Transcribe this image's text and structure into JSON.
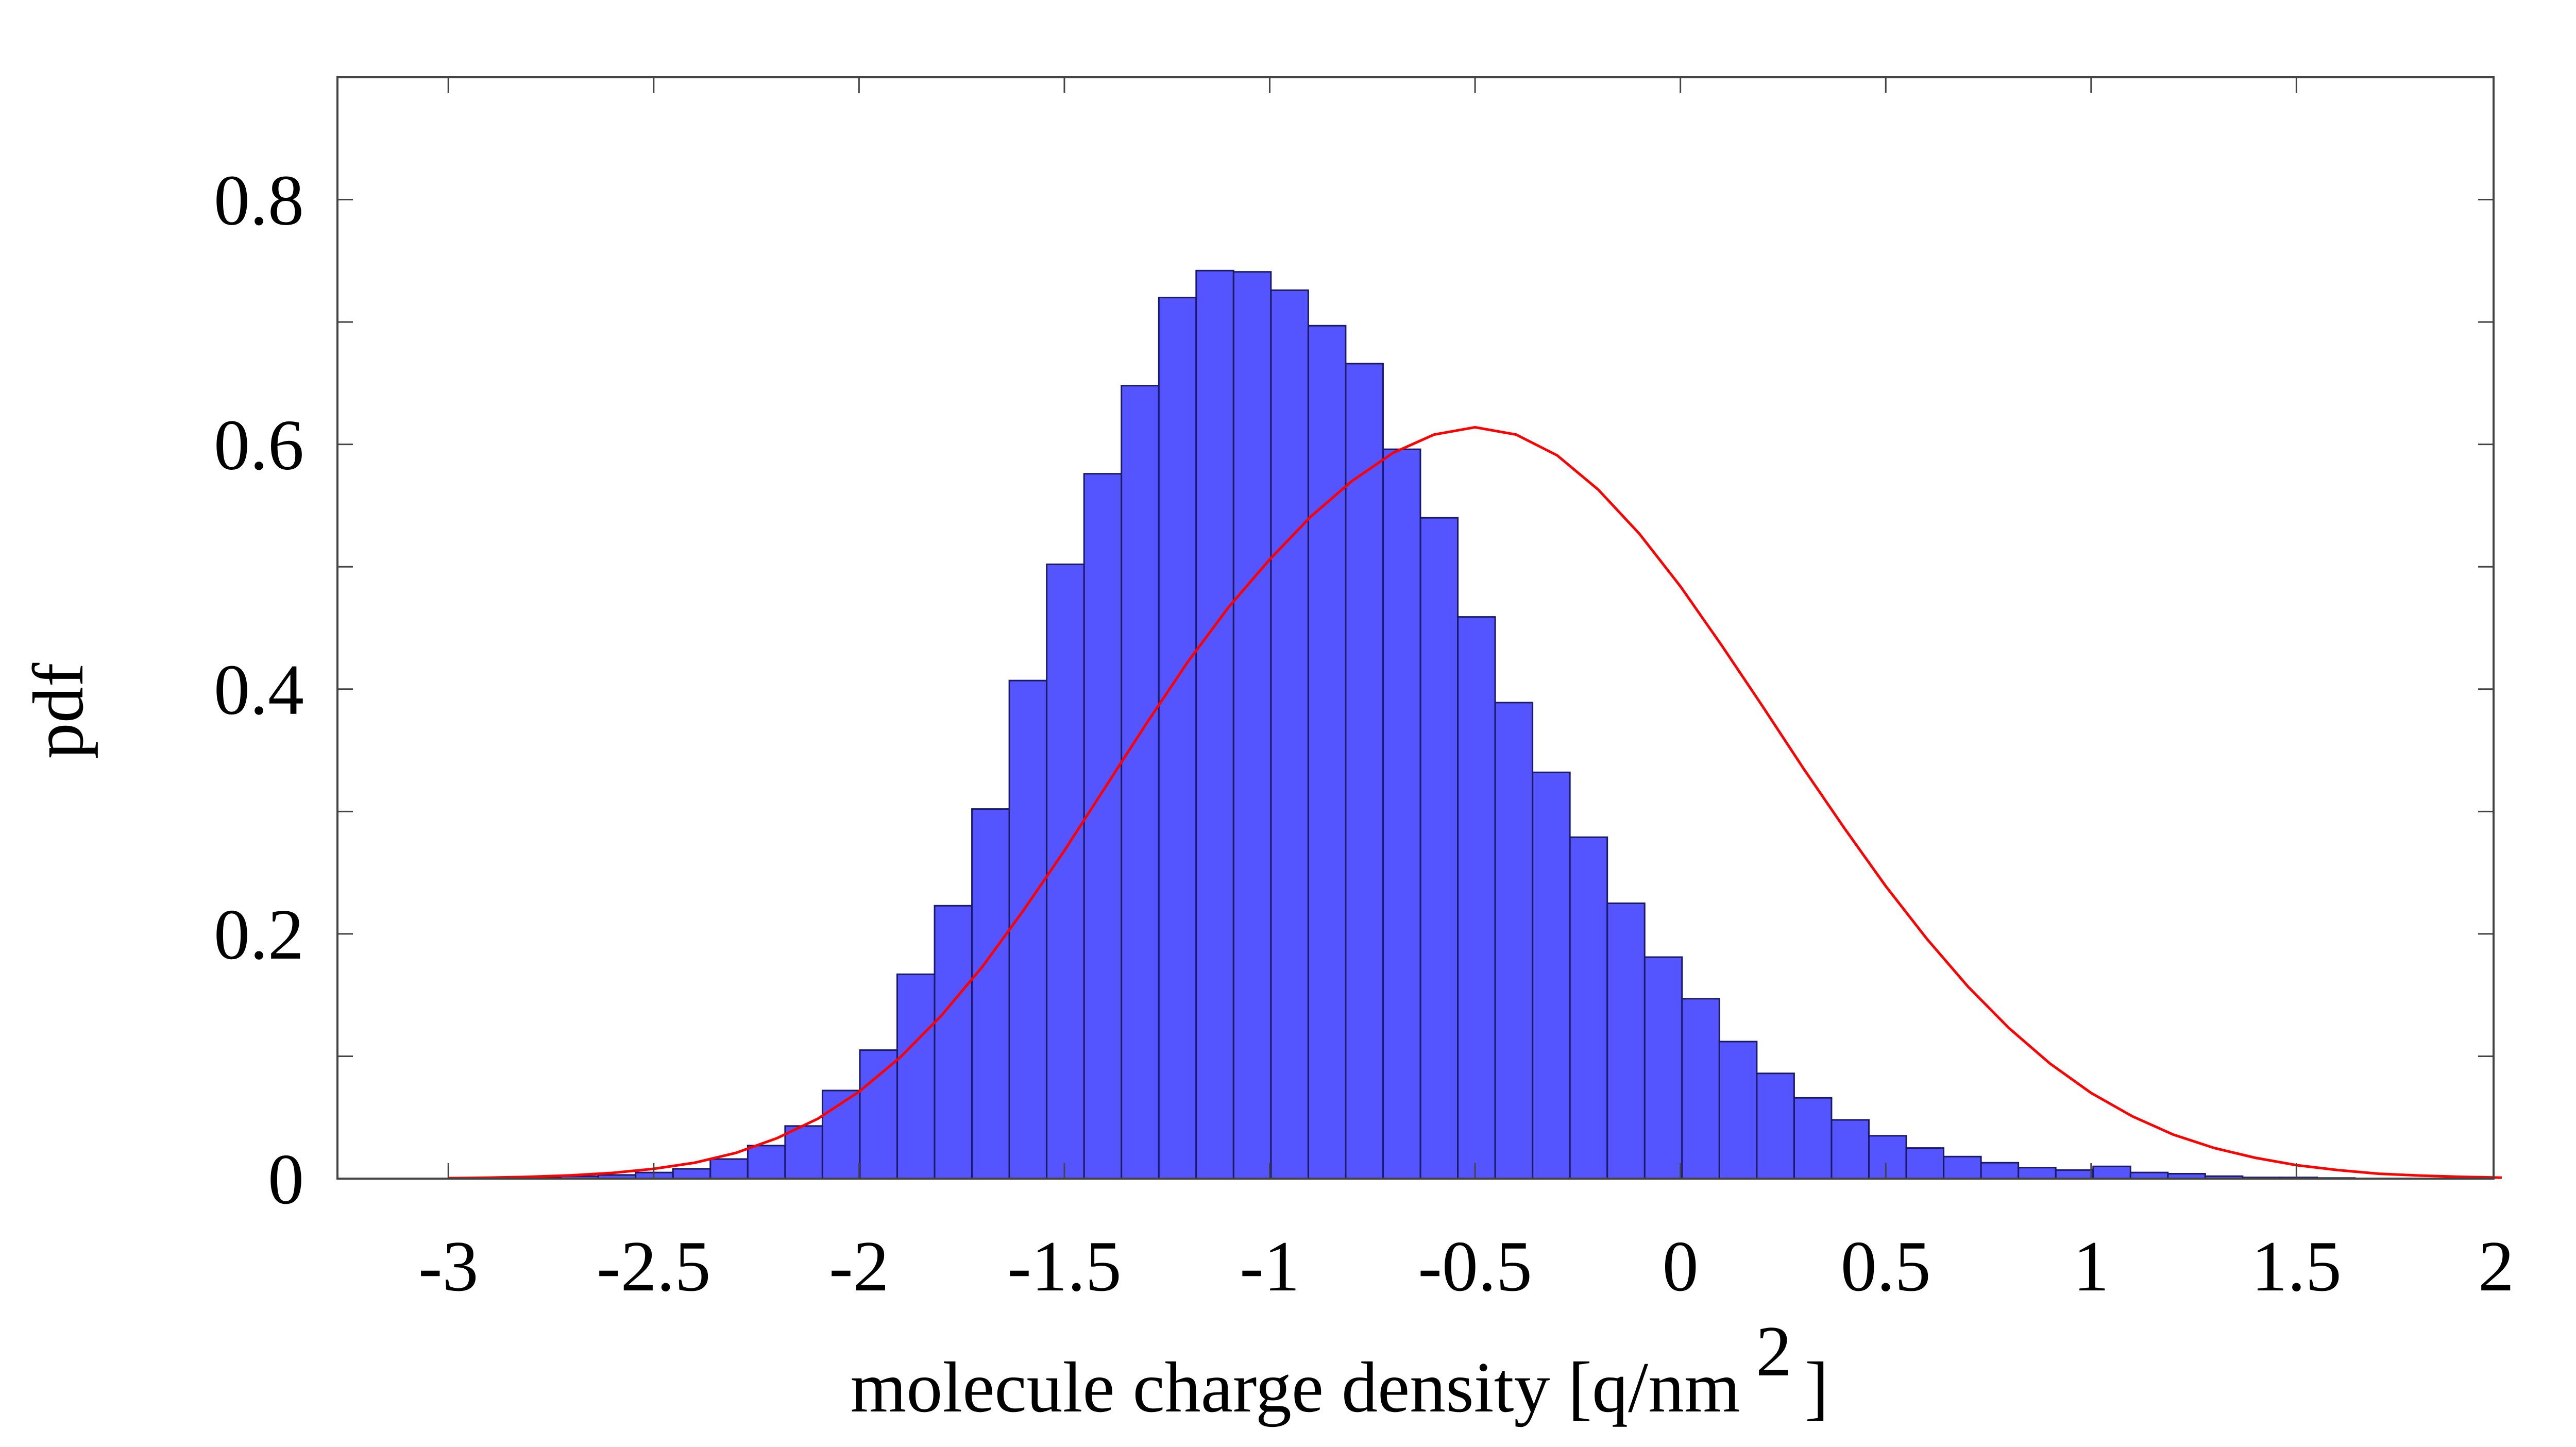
{
  "chart_data": {
    "type": "bar",
    "xlabel": "molecule charge density [q/nm",
    "xlabel_superscript": "2",
    "xlabel_suffix": "]",
    "ylabel": "pdf",
    "xlim": [
      -3.27,
      1.98
    ],
    "ylim": [
      0,
      0.9
    ],
    "x_ticks": [
      -3,
      -2.5,
      -2,
      -1.5,
      -1,
      -0.5,
      0,
      0.5,
      1,
      1.5,
      2
    ],
    "x_tick_labels": [
      "-3",
      "-2.5",
      "-2",
      "-1.5",
      "-1",
      "-0.5",
      "0",
      "0.5",
      "1",
      "1.5",
      "2"
    ],
    "y_ticks": [
      0,
      0.2,
      0.4,
      0.6,
      0.8
    ],
    "y_tick_labels": [
      "0",
      "0.2",
      "0.4",
      "0.6",
      "0.8"
    ],
    "grid": false,
    "legend": "none",
    "histogram": {
      "name": "",
      "color": "#5555ff",
      "edge_color": "#1a1a66",
      "bin_width": 0.0909,
      "bins_start": [
        -2.908,
        -2.817,
        -2.726,
        -2.635,
        -2.544,
        -2.453,
        -2.362,
        -2.271,
        -2.18,
        -2.089,
        -1.998,
        -1.907,
        -1.816,
        -1.725,
        -1.634,
        -1.543,
        -1.452,
        -1.361,
        -1.27,
        -1.179,
        -1.088,
        -0.997,
        -0.906,
        -0.815,
        -0.724,
        -0.633,
        -0.542,
        -0.451,
        -0.36,
        -0.269,
        -0.178,
        -0.087,
        0.004,
        0.095,
        0.186,
        0.277,
        0.368,
        0.459,
        0.55,
        0.641,
        0.732,
        0.823,
        0.914,
        1.005,
        1.096,
        1.187,
        1.278,
        1.369,
        1.46,
        1.551
      ],
      "values": [
        0,
        0.001,
        0.002,
        0.003,
        0.005,
        0.008,
        0.016,
        0.027,
        0.043,
        0.072,
        0.105,
        0.167,
        0.223,
        0.302,
        0.407,
        0.502,
        0.576,
        0.648,
        0.72,
        0.742,
        0.741,
        0.726,
        0.697,
        0.666,
        0.596,
        0.54,
        0.459,
        0.389,
        0.332,
        0.279,
        0.225,
        0.181,
        0.147,
        0.112,
        0.086,
        0.066,
        0.048,
        0.035,
        0.025,
        0.018,
        0.013,
        0.009,
        0.007,
        0.01,
        0.005,
        0.004,
        0.002,
        0.001,
        0.001,
        0.0005
      ]
    },
    "series": [
      {
        "name": "",
        "type": "line",
        "color": "#ff0000",
        "x": [
          -3.0,
          -2.9,
          -2.8,
          -2.7,
          -2.6,
          -2.5,
          -2.4,
          -2.3,
          -2.2,
          -2.1,
          -2.0,
          -1.9,
          -1.8,
          -1.7,
          -1.6,
          -1.5,
          -1.4,
          -1.3,
          -1.2,
          -1.1,
          -1.0,
          -0.9,
          -0.8,
          -0.7,
          -0.6,
          -0.5,
          -0.4,
          -0.3,
          -0.2,
          -0.1,
          0.0,
          0.1,
          0.2,
          0.3,
          0.4,
          0.5,
          0.6,
          0.7,
          0.8,
          0.9,
          1.0,
          1.1,
          1.2,
          1.3,
          1.4,
          1.5,
          1.6,
          1.7,
          1.8,
          1.9,
          2.0
        ],
        "y": [
          0.0004,
          0.0008,
          0.0015,
          0.0027,
          0.0047,
          0.008,
          0.013,
          0.021,
          0.033,
          0.049,
          0.071,
          0.099,
          0.133,
          0.173,
          0.219,
          0.268,
          0.32,
          0.372,
          0.422,
          0.467,
          0.506,
          0.541,
          0.57,
          0.593,
          0.608,
          0.614,
          0.608,
          0.591,
          0.563,
          0.527,
          0.484,
          0.436,
          0.386,
          0.335,
          0.286,
          0.239,
          0.196,
          0.157,
          0.123,
          0.094,
          0.07,
          0.051,
          0.036,
          0.025,
          0.017,
          0.011,
          0.007,
          0.004,
          0.0025,
          0.0015,
          0.0008
        ]
      }
    ]
  }
}
